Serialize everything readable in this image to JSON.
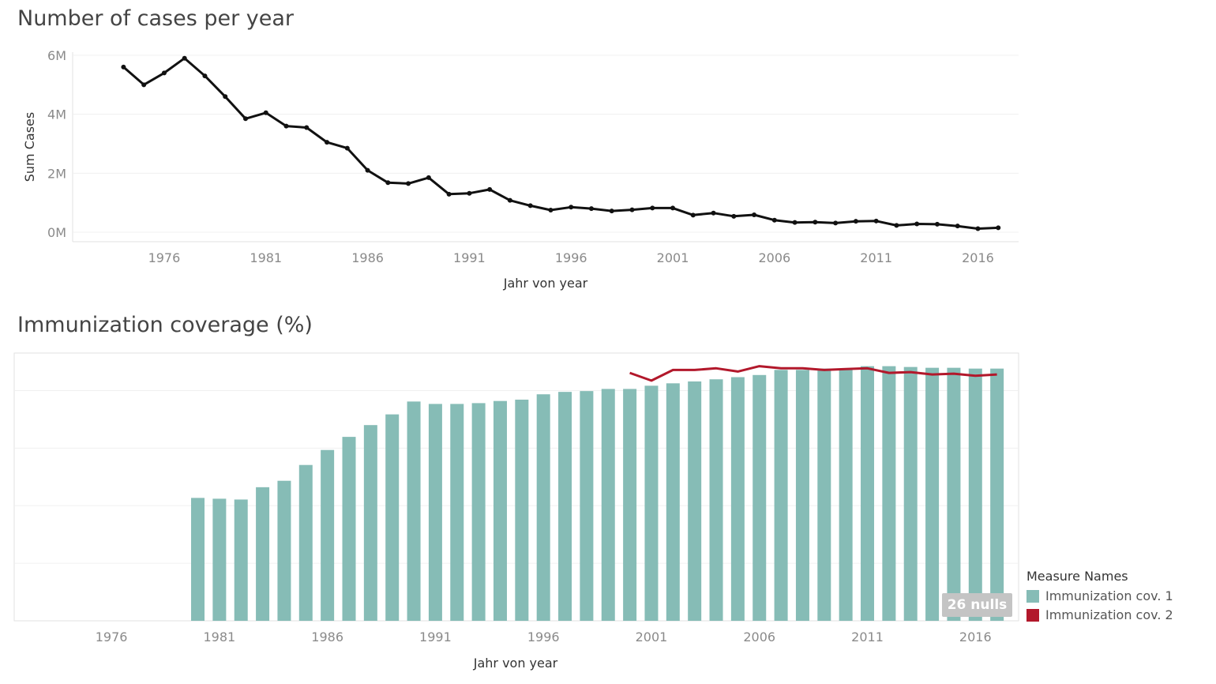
{
  "charts": {
    "cases": {
      "title": "Number of cases per year"
    },
    "coverage": {
      "title": "Immunization coverage (%)"
    }
  },
  "legend": {
    "title": "Measure Names",
    "items": [
      {
        "label": "Immunization cov. 1",
        "color": "#86bcb6"
      },
      {
        "label": "Immunization cov. 2",
        "color": "#b2182b"
      }
    ]
  },
  "nulls_badge": "26 nulls",
  "chart_data": [
    {
      "type": "line",
      "title": "Number of cases per year",
      "xlabel": "Jahr von year",
      "ylabel": "Sum Cases",
      "xlim": [
        1971.5,
        2018
      ],
      "ylim": [
        0,
        6000000
      ],
      "x_ticks": [
        "1976",
        "1981",
        "1986",
        "1991",
        "1996",
        "2001",
        "2006",
        "2011",
        "2016"
      ],
      "y_ticks": [
        {
          "value": 0,
          "label": "0M"
        },
        {
          "value": 2000000,
          "label": "2M"
        },
        {
          "value": 4000000,
          "label": "4M"
        },
        {
          "value": 6000000,
          "label": "6M"
        }
      ],
      "grid": true,
      "series": [
        {
          "color": "#111111",
          "x": [
            1974,
            1975,
            1976,
            1977,
            1978,
            1979,
            1980,
            1981,
            1982,
            1983,
            1984,
            1985,
            1986,
            1987,
            1988,
            1989,
            1990,
            1991,
            1992,
            1993,
            1994,
            1995,
            1996,
            1997,
            1998,
            1999,
            2000,
            2001,
            2002,
            2003,
            2004,
            2005,
            2006,
            2007,
            2008,
            2009,
            2010,
            2011,
            2012,
            2013,
            2014,
            2015,
            2016,
            2017
          ],
          "y": [
            5600000,
            5000000,
            5400000,
            5900000,
            5300000,
            4600000,
            3850000,
            4050000,
            3600000,
            3550000,
            3050000,
            2850000,
            2100000,
            1680000,
            1650000,
            1850000,
            1290000,
            1320000,
            1450000,
            1080000,
            900000,
            750000,
            850000,
            800000,
            720000,
            760000,
            820000,
            820000,
            580000,
            650000,
            540000,
            590000,
            410000,
            330000,
            340000,
            310000,
            370000,
            380000,
            230000,
            280000,
            270000,
            210000,
            120000,
            150000
          ]
        }
      ]
    },
    {
      "type": "bar",
      "title": "Immunization coverage (%)",
      "xlabel": "Jahr von year",
      "ylabel": "",
      "xlim": [
        1971.5,
        2018
      ],
      "ylim": [
        0,
        100
      ],
      "x_ticks": [
        "1976",
        "1981",
        "1986",
        "1991",
        "1996",
        "2001",
        "2006",
        "2011",
        "2016"
      ],
      "y_gridlines": [
        0,
        21.5,
        43,
        64.5,
        86,
        100
      ],
      "grid": true,
      "legend": "bottom-right",
      "series": [
        {
          "name": "Immunization cov. 1",
          "type": "bar",
          "color": "#86bcb6",
          "x": [
            1980,
            1981,
            1982,
            1983,
            1984,
            1985,
            1986,
            1987,
            1988,
            1989,
            1990,
            1991,
            1992,
            1993,
            1994,
            1995,
            1996,
            1997,
            1998,
            1999,
            2000,
            2001,
            2002,
            2003,
            2004,
            2005,
            2006,
            2007,
            2008,
            2009,
            2010,
            2011,
            2012,
            2013,
            2014,
            2015,
            2016,
            2017
          ],
          "y": [
            45.9,
            45.6,
            45.3,
            49.9,
            52.3,
            58.2,
            63.8,
            68.7,
            73.1,
            77.1,
            81.9,
            81.0,
            81.0,
            81.3,
            82.1,
            82.6,
            84.6,
            85.5,
            85.8,
            86.6,
            86.6,
            87.8,
            88.7,
            89.4,
            90.2,
            91.0,
            91.8,
            93.7,
            93.7,
            94.2,
            94.2,
            95.1,
            95.1,
            94.8,
            94.5,
            94.5,
            94.2,
            94.2
          ]
        },
        {
          "name": "Immunization cov. 2",
          "type": "line",
          "color": "#b2182b",
          "x": [
            2000,
            2001,
            2002,
            2003,
            2004,
            2005,
            2006,
            2007,
            2008,
            2009,
            2010,
            2011,
            2012,
            2013,
            2014,
            2015,
            2016,
            2017
          ],
          "y": [
            92.6,
            89.7,
            93.7,
            93.7,
            94.3,
            93.1,
            95.1,
            94.3,
            94.3,
            93.7,
            94.0,
            94.3,
            92.6,
            92.9,
            92.0,
            92.3,
            91.5,
            92.0
          ]
        }
      ],
      "annotation": "26 nulls"
    }
  ]
}
